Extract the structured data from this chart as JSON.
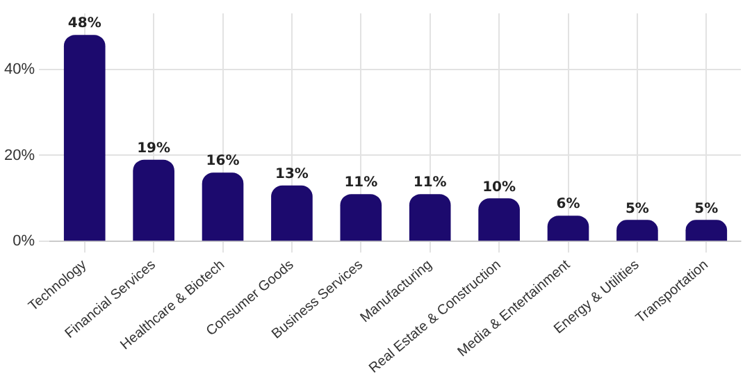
{
  "chart_data": {
    "type": "bar",
    "categories": [
      "Technology",
      "Financial Services",
      "Healthcare & Biotech",
      "Consumer Goods",
      "Business Services",
      "Manufacturing",
      "Real Estate & Construction",
      "Media & Entertainment",
      "Energy & Utilities",
      "Transportation"
    ],
    "values": [
      48,
      19,
      16,
      13,
      11,
      11,
      10,
      6,
      5,
      5
    ],
    "value_labels": [
      "48%",
      "19%",
      "16%",
      "13%",
      "11%",
      "11%",
      "10%",
      "6%",
      "5%",
      "5%"
    ],
    "color": "#1c0a6e",
    "ylim": [
      0,
      53
    ],
    "yticks": [
      {
        "value": 0,
        "label": "0%"
      },
      {
        "value": 20,
        "label": "20%"
      },
      {
        "value": 40,
        "label": "40%"
      }
    ],
    "grid": true
  }
}
